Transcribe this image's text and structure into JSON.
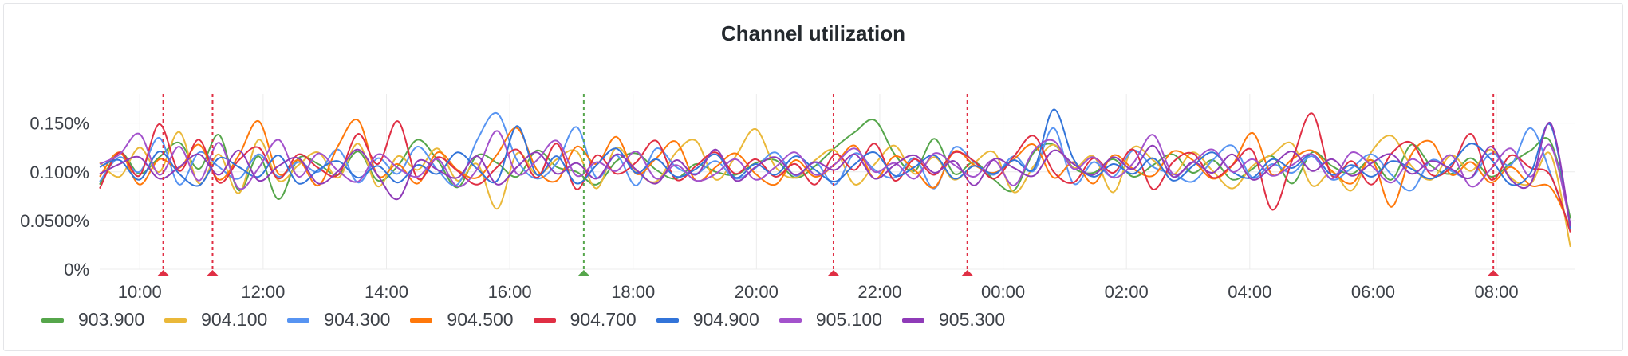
{
  "panel": {
    "title": "Channel utilization"
  },
  "colors": {
    "grid": "#ececec",
    "alert_red": "#e02f44",
    "alert_green": "#56a64b"
  },
  "chart_data": {
    "type": "line",
    "title": "Channel utilization",
    "xlabel": "",
    "ylabel": "",
    "x_range_hours": [
      9.35,
      33.28
    ],
    "ylim": [
      0,
      0.18
    ],
    "y_ticks": [
      {
        "value": 0,
        "label": "0%"
      },
      {
        "value": 0.05,
        "label": "0.0500%"
      },
      {
        "value": 0.1,
        "label": "0.100%"
      },
      {
        "value": 0.15,
        "label": "0.150%"
      }
    ],
    "x_ticks": [
      {
        "hour": 10,
        "label": "10:00"
      },
      {
        "hour": 12,
        "label": "12:00"
      },
      {
        "hour": 14,
        "label": "14:00"
      },
      {
        "hour": 16,
        "label": "16:00"
      },
      {
        "hour": 18,
        "label": "18:00"
      },
      {
        "hour": 20,
        "label": "20:00"
      },
      {
        "hour": 22,
        "label": "22:00"
      },
      {
        "hour": 24,
        "label": "00:00"
      },
      {
        "hour": 26,
        "label": "02:00"
      },
      {
        "hour": 28,
        "label": "04:00"
      },
      {
        "hour": 30,
        "label": "06:00"
      },
      {
        "hour": 32,
        "label": "08:00"
      }
    ],
    "grid": true,
    "legend_position": "bottom-left",
    "annotations": [
      {
        "hour": 10.38,
        "state": "alerting"
      },
      {
        "hour": 11.18,
        "state": "alerting"
      },
      {
        "hour": 17.2,
        "state": "ok"
      },
      {
        "hour": 21.25,
        "state": "alerting"
      },
      {
        "hour": 23.42,
        "state": "alerting"
      },
      {
        "hour": 31.95,
        "state": "alerting"
      }
    ],
    "series": [
      {
        "name": "903.900",
        "color": "#56a64b",
        "values": [
          0.087,
          0.12,
          0.098,
          0.115,
          0.13,
          0.103,
          0.138,
          0.081,
          0.116,
          0.072,
          0.114,
          0.108,
          0.097,
          0.121,
          0.091,
          0.106,
          0.133,
          0.112,
          0.084,
          0.117,
          0.109,
          0.095,
          0.122,
          0.105,
          0.1,
          0.087,
          0.111,
          0.119,
          0.102,
          0.093,
          0.108,
          0.1,
          0.097,
          0.109,
          0.112,
          0.094,
          0.106,
          0.125,
          0.141,
          0.153,
          0.118,
          0.101,
          0.134,
          0.098,
          0.11,
          0.092,
          0.081,
          0.12,
          0.128,
          0.104,
          0.099,
          0.113,
          0.095,
          0.107,
          0.118,
          0.099,
          0.112,
          0.092,
          0.103,
          0.116,
          0.088,
          0.12,
          0.106,
          0.098,
          0.112,
          0.092,
          0.128,
          0.106,
          0.098,
          0.114,
          0.095,
          0.109,
          0.122,
          0.131,
          0.052
        ]
      },
      {
        "name": "904.100",
        "color": "#eab839",
        "values": [
          0.11,
          0.095,
          0.125,
          0.1,
          0.141,
          0.088,
          0.118,
          0.078,
          0.133,
          0.091,
          0.107,
          0.12,
          0.094,
          0.129,
          0.085,
          0.116,
          0.102,
          0.124,
          0.091,
          0.108,
          0.062,
          0.119,
          0.097,
          0.113,
          0.121,
          0.083,
          0.125,
          0.101,
          0.09,
          0.12,
          0.132,
          0.092,
          0.116,
          0.144,
          0.105,
          0.094,
          0.112,
          0.122,
          0.087,
          0.108,
          0.127,
          0.098,
          0.115,
          0.092,
          0.109,
          0.12,
          0.079,
          0.106,
          0.128,
          0.104,
          0.116,
          0.079,
          0.125,
          0.112,
          0.097,
          0.12,
          0.101,
          0.083,
          0.106,
          0.118,
          0.129,
          0.086,
          0.1,
          0.081,
          0.121,
          0.137,
          0.106,
          0.092,
          0.117,
          0.101,
          0.123,
          0.094,
          0.088,
          0.118,
          0.023
        ]
      },
      {
        "name": "904.300",
        "color": "#5794f2",
        "values": [
          0.09,
          0.115,
          0.1,
          0.135,
          0.087,
          0.12,
          0.105,
          0.093,
          0.118,
          0.095,
          0.11,
          0.1,
          0.123,
          0.089,
          0.114,
          0.098,
          0.126,
          0.102,
          0.087,
          0.133,
          0.16,
          0.112,
          0.093,
          0.109,
          0.146,
          0.094,
          0.117,
          0.086,
          0.124,
          0.105,
          0.098,
          0.111,
          0.093,
          0.104,
          0.12,
          0.096,
          0.11,
          0.087,
          0.119,
          0.102,
          0.094,
          0.114,
          0.083,
          0.125,
          0.11,
          0.097,
          0.116,
          0.101,
          0.145,
          0.088,
          0.11,
          0.095,
          0.122,
          0.105,
          0.098,
          0.09,
          0.112,
          0.127,
          0.094,
          0.108,
          0.099,
          0.116,
          0.092,
          0.104,
          0.118,
          0.097,
          0.081,
          0.112,
          0.101,
          0.094,
          0.119,
          0.107,
          0.145,
          0.098,
          0.04
        ]
      },
      {
        "name": "904.500",
        "color": "#ff780a",
        "values": [
          0.095,
          0.12,
          0.087,
          0.113,
          0.104,
          0.128,
          0.092,
          0.117,
          0.152,
          0.098,
          0.112,
          0.086,
          0.127,
          0.153,
          0.096,
          0.108,
          0.088,
          0.12,
          0.102,
          0.094,
          0.118,
          0.145,
          0.102,
          0.091,
          0.126,
          0.108,
          0.136,
          0.098,
          0.114,
          0.131,
          0.091,
          0.105,
          0.119,
          0.098,
          0.087,
          0.112,
          0.095,
          0.108,
          0.127,
          0.093,
          0.116,
          0.102,
          0.084,
          0.121,
          0.107,
          0.099,
          0.113,
          0.128,
          0.094,
          0.11,
          0.088,
          0.117,
          0.103,
          0.096,
          0.121,
          0.112,
          0.093,
          0.107,
          0.14,
          0.097,
          0.113,
          0.122,
          0.101,
          0.088,
          0.112,
          0.064,
          0.118,
          0.131,
          0.097,
          0.11,
          0.089,
          0.105,
          0.086,
          0.084,
          0.043
        ]
      },
      {
        "name": "904.700",
        "color": "#e02f44",
        "values": [
          0.083,
          0.12,
          0.096,
          0.149,
          0.101,
          0.133,
          0.089,
          0.112,
          0.125,
          0.093,
          0.118,
          0.104,
          0.097,
          0.139,
          0.108,
          0.152,
          0.093,
          0.115,
          0.101,
          0.087,
          0.105,
          0.123,
          0.094,
          0.129,
          0.082,
          0.117,
          0.098,
          0.11,
          0.132,
          0.092,
          0.106,
          0.12,
          0.098,
          0.113,
          0.095,
          0.108,
          0.087,
          0.118,
          0.102,
          0.129,
          0.091,
          0.113,
          0.097,
          0.12,
          0.111,
          0.093,
          0.116,
          0.137,
          0.1,
          0.089,
          0.114,
          0.099,
          0.123,
          0.082,
          0.11,
          0.119,
          0.094,
          0.107,
          0.122,
          0.061,
          0.112,
          0.16,
          0.096,
          0.111,
          0.087,
          0.119,
          0.13,
          0.097,
          0.105,
          0.139,
          0.092,
          0.117,
          0.104,
          0.096,
          0.038
        ]
      },
      {
        "name": "904.900",
        "color": "#3274d9",
        "values": [
          0.105,
          0.112,
          0.092,
          0.121,
          0.098,
          0.086,
          0.114,
          0.105,
          0.095,
          0.117,
          0.088,
          0.102,
          0.111,
          0.094,
          0.106,
          0.089,
          0.107,
          0.098,
          0.12,
          0.103,
          0.091,
          0.147,
          0.097,
          0.116,
          0.088,
          0.107,
          0.124,
          0.099,
          0.113,
          0.095,
          0.103,
          0.118,
          0.094,
          0.108,
          0.097,
          0.116,
          0.102,
          0.09,
          0.108,
          0.12,
          0.096,
          0.105,
          0.117,
          0.093,
          0.106,
          0.098,
          0.112,
          0.103,
          0.164,
          0.113,
          0.095,
          0.108,
          0.098,
          0.114,
          0.091,
          0.106,
          0.12,
          0.1,
          0.094,
          0.113,
          0.104,
          0.118,
          0.097,
          0.107,
          0.095,
          0.111,
          0.103,
          0.093,
          0.108,
          0.129,
          0.113,
          0.087,
          0.099,
          0.148,
          0.042
        ]
      },
      {
        "name": "905.100",
        "color": "#a352cc",
        "values": [
          0.108,
          0.118,
          0.139,
          0.097,
          0.126,
          0.091,
          0.13,
          0.083,
          0.104,
          0.133,
          0.095,
          0.119,
          0.101,
          0.09,
          0.118,
          0.104,
          0.095,
          0.113,
          0.085,
          0.103,
          0.142,
          0.098,
          0.112,
          0.132,
          0.096,
          0.11,
          0.101,
          0.121,
          0.093,
          0.107,
          0.091,
          0.098,
          0.113,
          0.092,
          0.105,
          0.12,
          0.097,
          0.108,
          0.124,
          0.1,
          0.109,
          0.093,
          0.119,
          0.107,
          0.095,
          0.112,
          0.086,
          0.122,
          0.132,
          0.103,
          0.115,
          0.094,
          0.109,
          0.138,
          0.098,
          0.11,
          0.123,
          0.1,
          0.113,
          0.096,
          0.107,
          0.118,
          0.093,
          0.12,
          0.106,
          0.089,
          0.113,
          0.101,
          0.117,
          0.085,
          0.103,
          0.124,
          0.095,
          0.127,
          0.046
        ]
      },
      {
        "name": "905.300",
        "color": "#8f3bb8",
        "values": [
          0.098,
          0.108,
          0.115,
          0.093,
          0.105,
          0.118,
          0.097,
          0.122,
          0.091,
          0.106,
          0.114,
          0.088,
          0.101,
          0.123,
          0.096,
          0.072,
          0.111,
          0.102,
          0.094,
          0.116,
          0.087,
          0.105,
          0.12,
          0.098,
          0.109,
          0.093,
          0.118,
          0.102,
          0.088,
          0.112,
          0.097,
          0.123,
          0.091,
          0.105,
          0.115,
          0.097,
          0.11,
          0.102,
          0.118,
          0.093,
          0.107,
          0.117,
          0.099,
          0.111,
          0.086,
          0.113,
          0.104,
          0.096,
          0.122,
          0.108,
          0.097,
          0.115,
          0.103,
          0.127,
          0.095,
          0.11,
          0.099,
          0.118,
          0.092,
          0.106,
          0.121,
          0.101,
          0.113,
          0.096,
          0.109,
          0.118,
          0.098,
          0.111,
          0.103,
          0.094,
          0.126,
          0.092,
          0.088,
          0.15,
          0.044
        ]
      }
    ]
  }
}
